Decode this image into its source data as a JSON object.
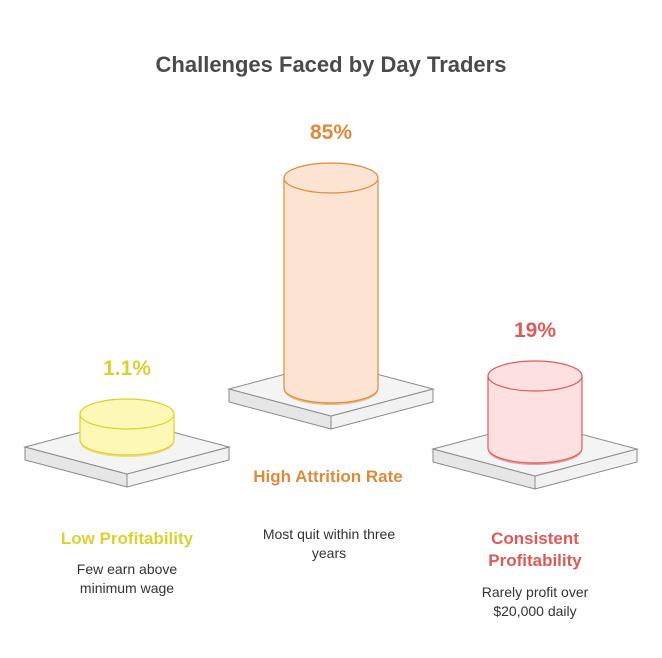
{
  "chart_data": {
    "type": "bar",
    "title": "Challenges Faced by Day Traders",
    "unit": "%",
    "categories": [
      "Low Profitability",
      "High Attrition Rate",
      "Consistent Profitability"
    ],
    "values": [
      1.1,
      85,
      19
    ],
    "value_labels": [
      "1.1%",
      "85%",
      "19%"
    ],
    "descriptions": [
      "Few earn above minimum wage",
      "Most quit within three years",
      "Rarely profit over $20,000 daily"
    ],
    "colors": {
      "low_profitability": {
        "fill": "#fdf8b6",
        "stroke": "#ddd02e",
        "text": "#ddd02e"
      },
      "high_attrition_rate": {
        "fill": "#fde3d2",
        "stroke": "#de8a3a",
        "text": "#de8a3a"
      },
      "consistent_profitability": {
        "fill": "#fde0e0",
        "stroke": "#de5a5a",
        "text": "#de5a5a"
      }
    }
  }
}
